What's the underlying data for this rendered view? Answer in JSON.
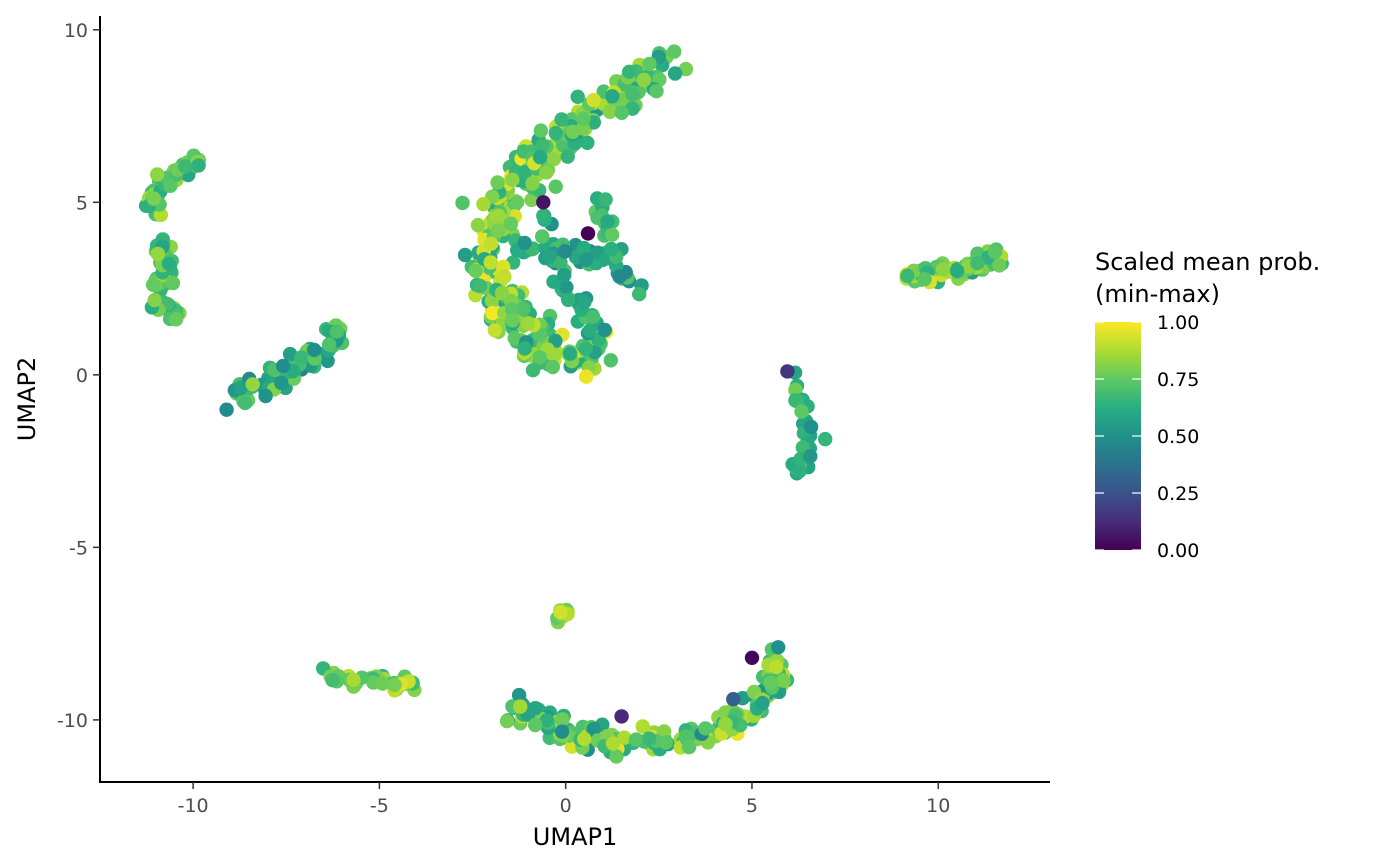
{
  "chart_data": {
    "type": "scatter",
    "xlabel": "UMAP1",
    "ylabel": "UMAP2",
    "xlim": [
      -12.5,
      13
    ],
    "ylim": [
      -11.8,
      10.4
    ],
    "x_ticks": [
      -10,
      -5,
      0,
      5,
      10
    ],
    "y_ticks": [
      -10,
      -5,
      0,
      5,
      10
    ],
    "x_tick_labels": [
      "-10",
      "-5",
      "0",
      "5",
      "10"
    ],
    "y_tick_labels": [
      "-10",
      "-5",
      "0",
      "5",
      "10"
    ],
    "grid": false,
    "colormap": "viridis",
    "colorbar": {
      "title_lines": [
        "Scaled mean prob.",
        "(min-max)"
      ],
      "ticks": [
        0,
        0.25,
        0.5,
        0.75,
        1
      ],
      "tick_labels": [
        "0.00",
        "0.25",
        "0.50",
        "0.75",
        "1.00"
      ],
      "range": [
        0,
        1
      ],
      "placement": "right"
    },
    "clusters": [
      {
        "name": "top-left arc",
        "path": [
          [
            -9.8,
            6.2
          ],
          [
            -10.3,
            6.0
          ],
          [
            -10.6,
            5.7
          ],
          [
            -10.9,
            5.5
          ],
          [
            -11.1,
            5.0
          ],
          [
            -11.0,
            4.5
          ]
        ],
        "spread": 0.12,
        "points": 45,
        "value_range": [
          0.45,
          0.9
        ]
      },
      {
        "name": "left vertical",
        "path": [
          [
            -10.9,
            3.8
          ],
          [
            -10.8,
            3.2
          ],
          [
            -10.9,
            2.6
          ],
          [
            -11.0,
            2.0
          ],
          [
            -10.6,
            2.0
          ],
          [
            -10.3,
            1.6
          ]
        ],
        "spread": 0.14,
        "points": 40,
        "value_range": [
          0.5,
          0.85
        ]
      },
      {
        "name": "left diagonal",
        "path": [
          [
            -8.9,
            -0.6
          ],
          [
            -8.5,
            -0.3
          ],
          [
            -7.8,
            -0.2
          ],
          [
            -7.3,
            0.2
          ],
          [
            -6.8,
            0.5
          ],
          [
            -6.3,
            1.0
          ],
          [
            -6.0,
            1.2
          ]
        ],
        "spread": 0.17,
        "points": 70,
        "value_range": [
          0.35,
          0.85
        ]
      },
      {
        "name": "left horizontal",
        "path": [
          [
            -6.5,
            -8.7
          ],
          [
            -5.9,
            -8.85
          ],
          [
            -5.3,
            -8.9
          ],
          [
            -4.6,
            -8.95
          ],
          [
            -3.9,
            -9.0
          ]
        ],
        "spread": 0.09,
        "points": 35,
        "value_range": [
          0.5,
          0.95
        ]
      },
      {
        "name": "small dash",
        "path": [
          [
            -0.3,
            -7.2
          ],
          [
            -0.1,
            -7.0
          ],
          [
            0.0,
            -6.8
          ]
        ],
        "spread": 0.06,
        "points": 10,
        "value_range": [
          0.6,
          1.0
        ]
      },
      {
        "name": "central C arc",
        "path": [
          [
            2.9,
            9.0
          ],
          [
            2.4,
            8.7
          ],
          [
            1.6,
            8.2
          ],
          [
            0.9,
            7.7
          ],
          [
            0.2,
            7.1
          ],
          [
            -0.6,
            6.4
          ],
          [
            -1.2,
            5.6
          ],
          [
            -1.8,
            4.8
          ],
          [
            -2.1,
            3.8
          ],
          [
            -2.0,
            2.8
          ],
          [
            -1.5,
            1.8
          ],
          [
            -1.0,
            1.1
          ],
          [
            -0.4,
            0.6
          ],
          [
            0.3,
            0.6
          ],
          [
            0.9,
            0.9
          ]
        ],
        "spread": 0.3,
        "points": 330,
        "value_range": [
          0.45,
          1.0
        ]
      },
      {
        "name": "central inner branch",
        "path": [
          [
            -1.3,
            3.7
          ],
          [
            -0.6,
            3.5
          ],
          [
            0.3,
            3.6
          ],
          [
            1.1,
            3.4
          ],
          [
            1.6,
            3.0
          ],
          [
            2.1,
            2.6
          ]
        ],
        "spread": 0.16,
        "points": 45,
        "value_range": [
          0.4,
          0.75
        ]
      },
      {
        "name": "central inner stalk",
        "path": [
          [
            -0.5,
            4.4
          ],
          [
            -0.2,
            3.2
          ],
          [
            0.3,
            2.0
          ],
          [
            0.8,
            1.3
          ]
        ],
        "spread": 0.18,
        "points": 40,
        "value_range": [
          0.45,
          0.75
        ]
      },
      {
        "name": "central right spur",
        "path": [
          [
            0.9,
            5.2
          ],
          [
            1.1,
            4.3
          ],
          [
            1.1,
            3.6
          ]
        ],
        "spread": 0.12,
        "points": 14,
        "value_range": [
          0.5,
          0.8
        ]
      },
      {
        "name": "right blob",
        "path": [
          [
            9.3,
            2.9
          ],
          [
            9.8,
            2.95
          ],
          [
            10.4,
            3.0
          ],
          [
            10.9,
            3.1
          ],
          [
            11.4,
            3.3
          ],
          [
            11.7,
            3.5
          ]
        ],
        "spread": 0.14,
        "points": 60,
        "value_range": [
          0.5,
          0.98
        ]
      },
      {
        "name": "right vertical",
        "path": [
          [
            6.0,
            0.0
          ],
          [
            6.2,
            -0.4
          ],
          [
            6.4,
            -0.9
          ],
          [
            6.5,
            -1.4
          ],
          [
            6.7,
            -1.8
          ],
          [
            6.3,
            -2.4
          ],
          [
            6.15,
            -2.9
          ]
        ],
        "spread": 0.1,
        "points": 30,
        "value_range": [
          0.45,
          0.8
        ]
      },
      {
        "name": "bottom arc",
        "path": [
          [
            -1.4,
            -9.6
          ],
          [
            -0.9,
            -9.95
          ],
          [
            -0.3,
            -10.2
          ],
          [
            0.3,
            -10.4
          ],
          [
            1.0,
            -10.6
          ],
          [
            1.8,
            -10.7
          ],
          [
            2.5,
            -10.6
          ],
          [
            3.3,
            -10.5
          ],
          [
            4.1,
            -10.2
          ],
          [
            4.8,
            -9.8
          ],
          [
            5.3,
            -9.3
          ],
          [
            5.6,
            -8.7
          ],
          [
            5.5,
            -8.1
          ]
        ],
        "spread": 0.17,
        "points": 200,
        "value_range": [
          0.4,
          1.0
        ]
      }
    ],
    "outliers": [
      {
        "x": 0.6,
        "y": 4.1,
        "value": 0.0
      },
      {
        "x": -0.6,
        "y": 5.0,
        "value": 0.05
      },
      {
        "x": 5.0,
        "y": -8.2,
        "value": 0.02
      },
      {
        "x": 5.95,
        "y": 0.1,
        "value": 0.15
      },
      {
        "x": 1.5,
        "y": -9.9,
        "value": 0.12
      },
      {
        "x": 4.5,
        "y": -9.4,
        "value": 0.3
      }
    ]
  }
}
